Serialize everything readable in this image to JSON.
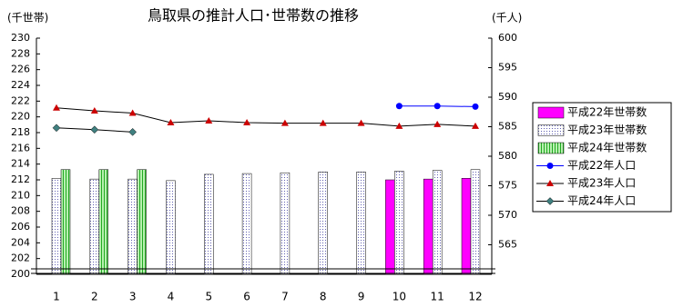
{
  "chart_data": {
    "type": "bar-line",
    "title": "鳥取県の推計人口･世帯数の推移",
    "y_label": "(千世帯)",
    "y2_label": "(千人)",
    "categories": [
      "1",
      "2",
      "3",
      "4",
      "5",
      "6",
      "7",
      "8",
      "9",
      "10",
      "11",
      "12"
    ],
    "ylim": [
      200,
      230
    ],
    "yticks": [
      200,
      202,
      204,
      206,
      208,
      210,
      212,
      214,
      216,
      218,
      220,
      222,
      224,
      226,
      228,
      230
    ],
    "y2lim": [
      560,
      600
    ],
    "y2ticks": [
      565,
      570,
      575,
      580,
      585,
      590,
      595,
      600
    ],
    "series": [
      {
        "name": "平成22年世帯数",
        "kind": "bar",
        "pattern": "solid",
        "color": "#ff00ff",
        "values": [
          null,
          null,
          null,
          null,
          null,
          null,
          null,
          null,
          null,
          212.0,
          212.1,
          212.2
        ]
      },
      {
        "name": "平成23年世帯数",
        "kind": "bar",
        "pattern": "dots",
        "color": "#8080c0",
        "values": [
          212.2,
          212.1,
          212.1,
          211.9,
          212.7,
          212.8,
          212.9,
          213.0,
          213.0,
          213.1,
          213.2,
          213.3
        ]
      },
      {
        "name": "平成24年世帯数",
        "kind": "bar",
        "pattern": "stripes",
        "color": "#33aa33",
        "values": [
          213.3,
          213.3,
          213.3,
          null,
          null,
          null,
          null,
          null,
          null,
          null,
          null,
          null
        ]
      },
      {
        "name": "平成22年人口",
        "kind": "line",
        "marker": "circle",
        "color": "#0000ff",
        "axis": "y2",
        "values": [
          null,
          null,
          null,
          null,
          null,
          null,
          null,
          null,
          null,
          588.5,
          588.5,
          588.4
        ]
      },
      {
        "name": "平成23年人口",
        "kind": "line",
        "marker": "triangle",
        "color": "#cc0000",
        "axis": "y2",
        "values": [
          588.2,
          587.7,
          587.3,
          585.7,
          586.0,
          585.7,
          585.6,
          585.6,
          585.6,
          585.1,
          585.4,
          585.1
        ]
      },
      {
        "name": "平成24年人口",
        "kind": "line",
        "marker": "diamond",
        "color": "#408080",
        "axis": "y2",
        "values": [
          584.8,
          584.5,
          584.1,
          null,
          null,
          null,
          null,
          null,
          null,
          null,
          null,
          null
        ]
      }
    ]
  }
}
